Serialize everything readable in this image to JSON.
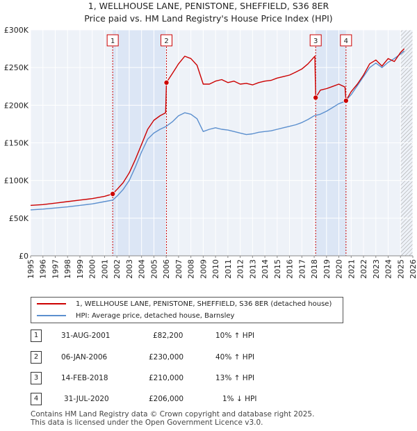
{
  "chart_data": {
    "type": "line",
    "title": "1, WELLHOUSE LANE, PENISTONE, SHEFFIELD, S36 8ER",
    "subtitle": "Price paid vs. HM Land Registry's House Price Index (HPI)",
    "xlim": [
      1995,
      2026
    ],
    "ylim": [
      0,
      300000
    ],
    "y_ticks": [
      0,
      50000,
      100000,
      150000,
      200000,
      250000,
      300000
    ],
    "y_tick_labels": [
      "£0",
      "£50K",
      "£100K",
      "£150K",
      "£200K",
      "£250K",
      "£300K"
    ],
    "x_ticks": [
      1995,
      1996,
      1997,
      1998,
      1999,
      2000,
      2001,
      2002,
      2003,
      2004,
      2005,
      2006,
      2007,
      2008,
      2009,
      2010,
      2011,
      2012,
      2013,
      2014,
      2015,
      2016,
      2017,
      2018,
      2019,
      2020,
      2021,
      2022,
      2023,
      2024,
      2025,
      2026
    ],
    "x_tick_labels": [
      "1995",
      "1996",
      "1997",
      "1998",
      "1999",
      "2000",
      "2001",
      "2002",
      "2003",
      "2004",
      "2005",
      "2006",
      "2007",
      "2008",
      "2009",
      "2010",
      "2011",
      "2012",
      "2013",
      "2014",
      "2015",
      "2016",
      "2017",
      "2018",
      "2019",
      "2020",
      "2021",
      "2022",
      "2023",
      "2024",
      "2025",
      "2026"
    ],
    "grid": true,
    "legend_position": "below",
    "shaded_ranges": [
      [
        2001.66,
        2006.02
      ],
      [
        2018.12,
        2020.58
      ]
    ],
    "hatched_from": 2025.0,
    "series": [
      {
        "name": "1, WELLHOUSE LANE, PENISTONE, SHEFFIELD, S36 8ER (detached house)",
        "color": "#cc0000",
        "x": [
          1995.0,
          1996.0,
          1997.0,
          1998.0,
          1999.0,
          2000.0,
          2001.0,
          2001.66,
          2002.0,
          2002.5,
          2003.0,
          2003.5,
          2004.0,
          2004.5,
          2005.0,
          2005.5,
          2005.95,
          2006.02,
          2006.5,
          2007.0,
          2007.5,
          2008.0,
          2008.5,
          2009.0,
          2009.5,
          2010.0,
          2010.5,
          2011.0,
          2011.5,
          2012.0,
          2012.5,
          2013.0,
          2013.5,
          2014.0,
          2014.5,
          2015.0,
          2015.5,
          2016.0,
          2016.5,
          2017.0,
          2017.5,
          2018.05,
          2018.12,
          2018.5,
          2019.0,
          2019.5,
          2020.0,
          2020.5,
          2020.58,
          2021.0,
          2021.5,
          2022.0,
          2022.5,
          2023.0,
          2023.5,
          2024.0,
          2024.5,
          2025.0,
          2025.3
        ],
        "y": [
          67000,
          68000,
          70000,
          72000,
          74000,
          76000,
          79000,
          82200,
          88000,
          97000,
          110000,
          128000,
          148000,
          168000,
          180000,
          186000,
          190000,
          230000,
          242000,
          255000,
          265000,
          262000,
          253000,
          228000,
          228000,
          232000,
          234000,
          230000,
          232000,
          228000,
          229000,
          227000,
          230000,
          232000,
          233000,
          236000,
          238000,
          240000,
          244000,
          248000,
          255000,
          265000,
          210000,
          220000,
          222000,
          225000,
          228000,
          224000,
          206000,
          218000,
          228000,
          240000,
          255000,
          260000,
          252000,
          262000,
          258000,
          270000,
          275000
        ]
      },
      {
        "name": "HPI: Average price, detached house, Barnsley",
        "color": "#5b8fce",
        "x": [
          1995.0,
          1996.0,
          1997.0,
          1998.0,
          1999.0,
          2000.0,
          2001.0,
          2001.66,
          2002.0,
          2002.5,
          2003.0,
          2003.5,
          2004.0,
          2004.5,
          2005.0,
          2005.5,
          2006.0,
          2006.5,
          2007.0,
          2007.5,
          2008.0,
          2008.5,
          2009.0,
          2009.5,
          2010.0,
          2010.5,
          2011.0,
          2011.5,
          2012.0,
          2012.5,
          2013.0,
          2013.5,
          2014.0,
          2014.5,
          2015.0,
          2015.5,
          2016.0,
          2016.5,
          2017.0,
          2017.5,
          2018.0,
          2018.5,
          2019.0,
          2019.5,
          2020.0,
          2020.5,
          2021.0,
          2021.5,
          2022.0,
          2022.5,
          2023.0,
          2023.5,
          2024.0,
          2024.5,
          2025.0,
          2025.3
        ],
        "y": [
          61000,
          62000,
          63500,
          65000,
          67000,
          69000,
          72000,
          74000,
          79000,
          88000,
          100000,
          118000,
          138000,
          155000,
          163000,
          168000,
          172000,
          178000,
          186000,
          190000,
          188000,
          182000,
          165000,
          168000,
          170000,
          168000,
          167000,
          165000,
          163000,
          161000,
          162000,
          164000,
          165000,
          166000,
          168000,
          170000,
          172000,
          174000,
          177000,
          181000,
          186000,
          188000,
          192000,
          197000,
          202000,
          205000,
          214000,
          226000,
          238000,
          250000,
          256000,
          250000,
          257000,
          262000,
          268000,
          272000
        ]
      }
    ],
    "sales": [
      {
        "num": "1",
        "date": "31-AUG-2001",
        "price": "£82,200",
        "delta": "10% ↑ HPI",
        "x": 2001.66,
        "y": 82200
      },
      {
        "num": "2",
        "date": "06-JAN-2006",
        "price": "£230,000",
        "delta": "40% ↑ HPI",
        "x": 2006.02,
        "y": 230000
      },
      {
        "num": "3",
        "date": "14-FEB-2018",
        "price": "£210,000",
        "delta": "13% ↑ HPI",
        "x": 2018.12,
        "y": 210000
      },
      {
        "num": "4",
        "date": "31-JUL-2020",
        "price": "£206,000",
        "delta": "1% ↓ HPI",
        "x": 2020.58,
        "y": 206000
      }
    ]
  },
  "footer": {
    "line1": "Contains HM Land Registry data © Crown copyright and database right 2025.",
    "line2": "This data is licensed under the Open Government Licence v3.0."
  }
}
